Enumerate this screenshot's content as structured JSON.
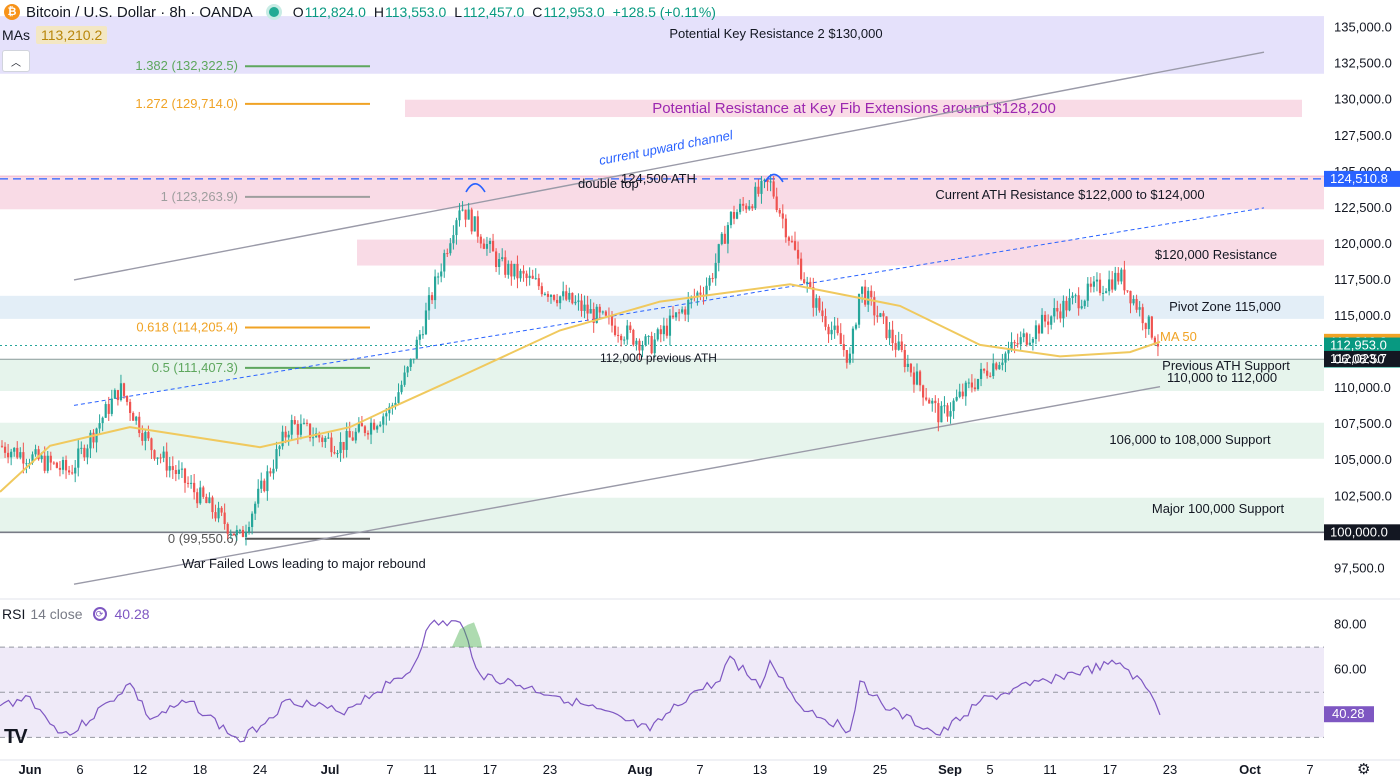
{
  "header": {
    "symbol": "Bitcoin / U.S. Dollar · 8h · OANDA",
    "coin_icon": "bitcoin-icon",
    "o_label": "O",
    "o_value": "112,824.0",
    "h_label": "H",
    "h_value": "113,553.0",
    "l_label": "L",
    "l_value": "112,457.0",
    "c_label": "C",
    "c_value": "112,953.0",
    "change": "+128.5 (+0.11%)"
  },
  "indicators": {
    "mas_label": "MAs",
    "mas_value": "113,210.2",
    "rsi_label": "RSI",
    "rsi_params": "14 close",
    "rsi_value": "40.28"
  },
  "colors": {
    "bull": "#26a69a",
    "bear": "#ef5350",
    "ma": "#f0c95e",
    "rsi": "#7e57c2",
    "resistance_zone": "#f9dbe6",
    "support_zone": "#e6f4ec",
    "pivot_zone": "#e3eef7",
    "key_zone": "#e5e1fb"
  },
  "chart_data": {
    "type": "candlestick",
    "title": "Bitcoin / U.S. Dollar · 8h · OANDA",
    "ylim": [
      96000,
      136500
    ],
    "y_ticks": [
      "135,000.0",
      "132,500.0",
      "130,000.0",
      "127,500.0",
      "125,000.0",
      "122,500.0",
      "120,000.0",
      "117,500.0",
      "115,000.0",
      "112,500.0",
      "110,000.0",
      "107,500.0",
      "105,000.0",
      "102,500.0",
      "100,000.0",
      "97,500.0"
    ],
    "x_ticks": [
      "Jun",
      "6",
      "12",
      "18",
      "24",
      "Jul",
      "7",
      "11",
      "17",
      "23",
      "Aug",
      "7",
      "13",
      "19",
      "25",
      "Sep",
      "5",
      "11",
      "17",
      "23",
      "Oct",
      "7"
    ],
    "price_path": [
      [
        "2025-05-29",
        106000
      ],
      [
        "2025-06-05",
        104200
      ],
      [
        "2025-06-10",
        110000
      ],
      [
        "2025-06-13",
        106000
      ],
      [
        "2025-06-22",
        99600
      ],
      [
        "2025-06-27",
        107500
      ],
      [
        "2025-07-02",
        106000
      ],
      [
        "2025-07-07",
        108500
      ],
      [
        "2025-07-09",
        111500
      ],
      [
        "2025-07-14",
        122800
      ],
      [
        "2025-07-18",
        118500
      ],
      [
        "2025-07-25",
        116000
      ],
      [
        "2025-08-02",
        112900
      ],
      [
        "2025-08-08",
        117500
      ],
      [
        "2025-08-10",
        121800
      ],
      [
        "2025-08-14",
        124200
      ],
      [
        "2025-08-18",
        116500
      ],
      [
        "2025-08-22",
        112000
      ],
      [
        "2025-08-23",
        117000
      ],
      [
        "2025-08-31",
        108000
      ],
      [
        "2025-09-05",
        111500
      ],
      [
        "2025-09-12",
        115500
      ],
      [
        "2025-09-18",
        117800
      ],
      [
        "2025-09-22",
        112953
      ]
    ],
    "series": [
      {
        "name": "MA 50",
        "last_value": "113,210.2",
        "path": [
          [
            "2025-05-29",
            102800
          ],
          [
            "2025-06-03",
            106000
          ],
          [
            "2025-06-11",
            107300
          ],
          [
            "2025-06-24",
            105900
          ],
          [
            "2025-07-03",
            107300
          ],
          [
            "2025-07-07",
            108600
          ],
          [
            "2025-07-14",
            110800
          ],
          [
            "2025-07-24",
            114000
          ],
          [
            "2025-08-03",
            116000
          ],
          [
            "2025-08-16",
            117200
          ],
          [
            "2025-08-27",
            115700
          ],
          [
            "2025-09-04",
            113000
          ],
          [
            "2025-09-12",
            112200
          ],
          [
            "2025-09-19",
            112500
          ],
          [
            "2025-09-22",
            113210
          ]
        ]
      }
    ],
    "price_labels": [
      {
        "value": 124510.8,
        "text": "124,510.8",
        "bg": "#2962ff"
      },
      {
        "value": 113210.2,
        "text": "113,210.2",
        "bg": "#f0a325"
      },
      {
        "value": 112953.0,
        "text": "112,953.0",
        "bg": "#089981"
      },
      {
        "value": 112023.7,
        "text": "112,023.7",
        "bg": "#131722"
      },
      {
        "value": 100000.0,
        "text": "100,000.0",
        "bg": "#131722"
      }
    ],
    "countdown": "06:08:50",
    "zones": [
      {
        "label": "Potential Key Resistance 2 $130,000",
        "low": 131800,
        "high": 135800,
        "color": "#e5e1fb"
      },
      {
        "label": "Potential Resistance at Key Fib Extensions around $128,200",
        "low": 128800,
        "high": 130000,
        "color": "#f9dbe6"
      },
      {
        "label": "Current ATH Resistance $122,000 to $124,000",
        "low": 122400,
        "high": 124700,
        "color": "#f9dbe6"
      },
      {
        "label": "$120,000 Resistance",
        "low": 118500,
        "high": 120300,
        "color": "#f9dbe6"
      },
      {
        "label": "Pivot Zone 115,000",
        "low": 114800,
        "high": 116400,
        "color": "#e3eef7"
      },
      {
        "label": "Previous ATH Support",
        "label2": "110,000 to 112,000",
        "low": 109800,
        "high": 112000,
        "color": "#e6f4ec"
      },
      {
        "label": "106,000 to 108,000 Support",
        "low": 105100,
        "high": 107600,
        "color": "#e6f4ec"
      },
      {
        "label": "Major 100,000 Support",
        "low": 100000,
        "high": 102400,
        "color": "#e6f4ec"
      }
    ],
    "fib_levels": [
      {
        "text": "1.382 (132,322.5)",
        "value": 132322.5,
        "color": "#5ea75e"
      },
      {
        "text": "1.272 (129,714.0)",
        "value": 129714.0,
        "color": "#f0a325"
      },
      {
        "text": "1 (123,263.9)",
        "value": 123263.9,
        "color": "#9e9e9e"
      },
      {
        "text": "0.618 (114,205.4)",
        "value": 114205.4,
        "color": "#f0a325"
      },
      {
        "text": "0.5 (111,407.3)",
        "value": 111407.3,
        "color": "#5ea75e"
      },
      {
        "text": "0 (99,550.6)",
        "value": 99550.6,
        "color": "#555555"
      }
    ],
    "annotations": {
      "channel": "current upward channel",
      "double_top": "double top",
      "ath": "124,500 ATH",
      "prev_ath": "112,000 previous ATH",
      "ma_label": "MA 50",
      "war_lows": "War Failed Lows leading to major rebound"
    },
    "rsi": {
      "ylim": [
        20,
        90
      ],
      "y_ticks": [
        "80.00",
        "60.00"
      ],
      "bands": [
        70,
        50,
        30
      ],
      "last_value": 40.28,
      "path": [
        [
          "2025-05-29",
          44
        ],
        [
          "2025-06-01",
          48
        ],
        [
          "2025-06-03",
          36
        ],
        [
          "2025-06-05",
          31
        ],
        [
          "2025-06-09",
          46
        ],
        [
          "2025-06-11",
          54
        ],
        [
          "2025-06-13",
          38
        ],
        [
          "2025-06-17",
          46
        ],
        [
          "2025-06-22",
          28
        ],
        [
          "2025-06-27",
          47
        ],
        [
          "2025-07-02",
          41
        ],
        [
          "2025-07-07",
          54
        ],
        [
          "2025-07-09",
          59
        ],
        [
          "2025-07-11",
          80
        ],
        [
          "2025-07-14",
          81
        ],
        [
          "2025-07-16",
          58
        ],
        [
          "2025-07-24",
          48
        ],
        [
          "2025-08-02",
          33
        ],
        [
          "2025-08-06",
          49
        ],
        [
          "2025-08-09",
          55
        ],
        [
          "2025-08-10",
          66
        ],
        [
          "2025-08-13",
          52
        ],
        [
          "2025-08-14",
          64
        ],
        [
          "2025-08-17",
          44
        ],
        [
          "2025-08-22",
          33
        ],
        [
          "2025-08-23",
          55
        ],
        [
          "2025-08-26",
          42
        ],
        [
          "2025-08-31",
          31
        ],
        [
          "2025-09-04",
          46
        ],
        [
          "2025-09-09",
          53
        ],
        [
          "2025-09-12",
          57
        ],
        [
          "2025-09-18",
          63
        ],
        [
          "2025-09-21",
          50
        ],
        [
          "2025-09-22",
          40
        ]
      ]
    }
  }
}
